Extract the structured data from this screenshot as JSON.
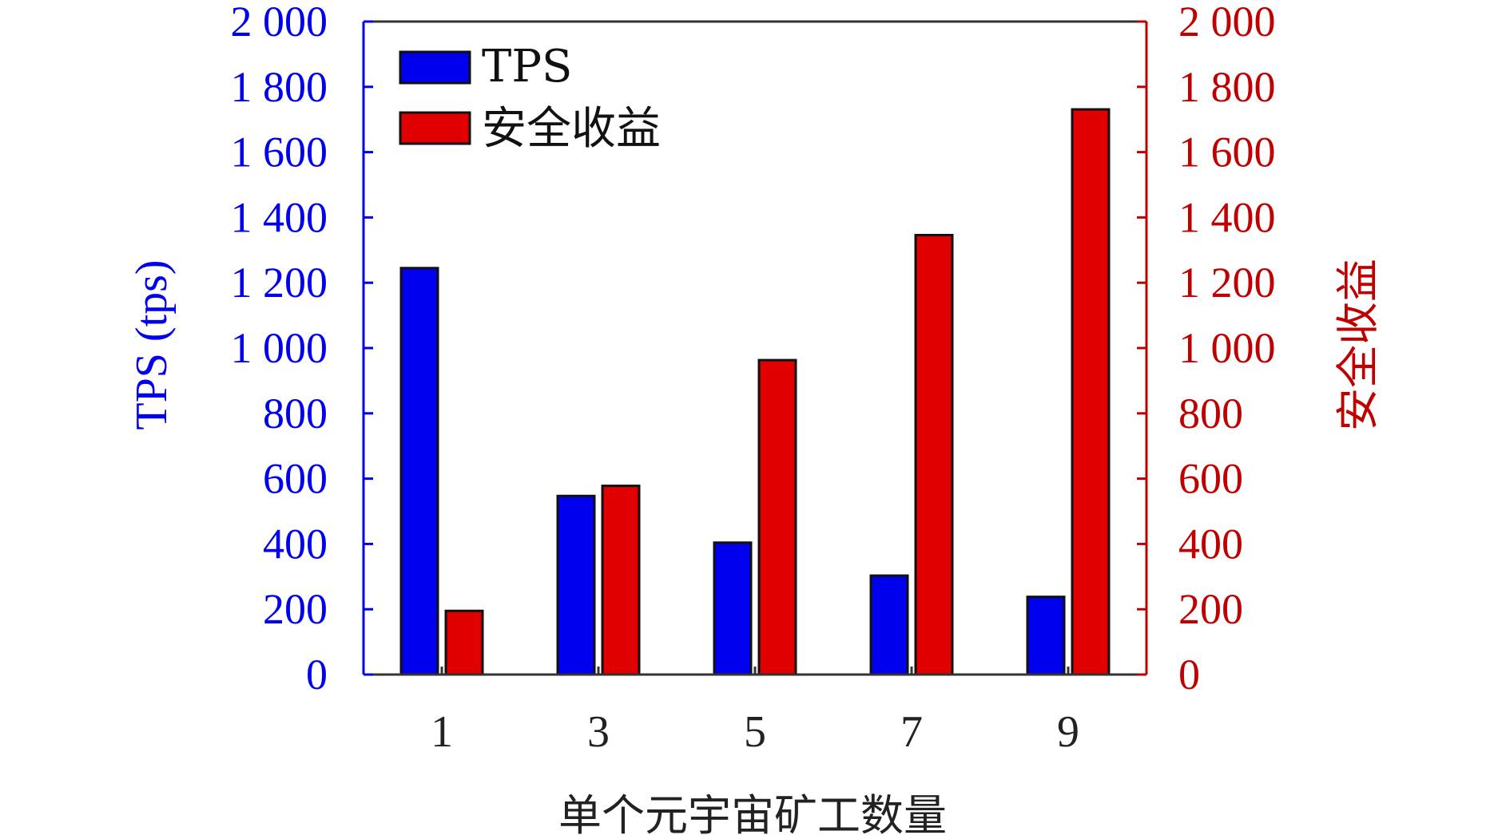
{
  "chart_data": {
    "type": "bar",
    "categories": [
      "1",
      "3",
      "5",
      "7",
      "9"
    ],
    "series": [
      {
        "name": "TPS",
        "axis": "left",
        "color": "#0000ee",
        "values": [
          1245,
          547,
          404,
          303,
          238
        ]
      },
      {
        "name": "安全收益",
        "axis": "right",
        "color": "#e00000",
        "values": [
          195,
          578,
          963,
          1346,
          1731
        ]
      }
    ],
    "xlabel": "单个元宇宙矿工数量",
    "ylabel_left": "TPS (tps)",
    "ylabel_right": "安全收益",
    "ylim_left": [
      0,
      2000
    ],
    "ylim_right": [
      0,
      2000
    ],
    "yticks_left": [
      "0",
      "200",
      "400",
      "600",
      "800",
      "1 000",
      "1 200",
      "1 400",
      "1 600",
      "1 800",
      "2 000"
    ],
    "yticks_right": [
      "0",
      "200",
      "400",
      "600",
      "800",
      "1 000",
      "1 200",
      "1 400",
      "1 600",
      "1 800",
      "2 000"
    ],
    "grid": false,
    "legend_position": "top-left",
    "left_axis_color": "#0000ee",
    "right_axis_color": "#c00000"
  }
}
